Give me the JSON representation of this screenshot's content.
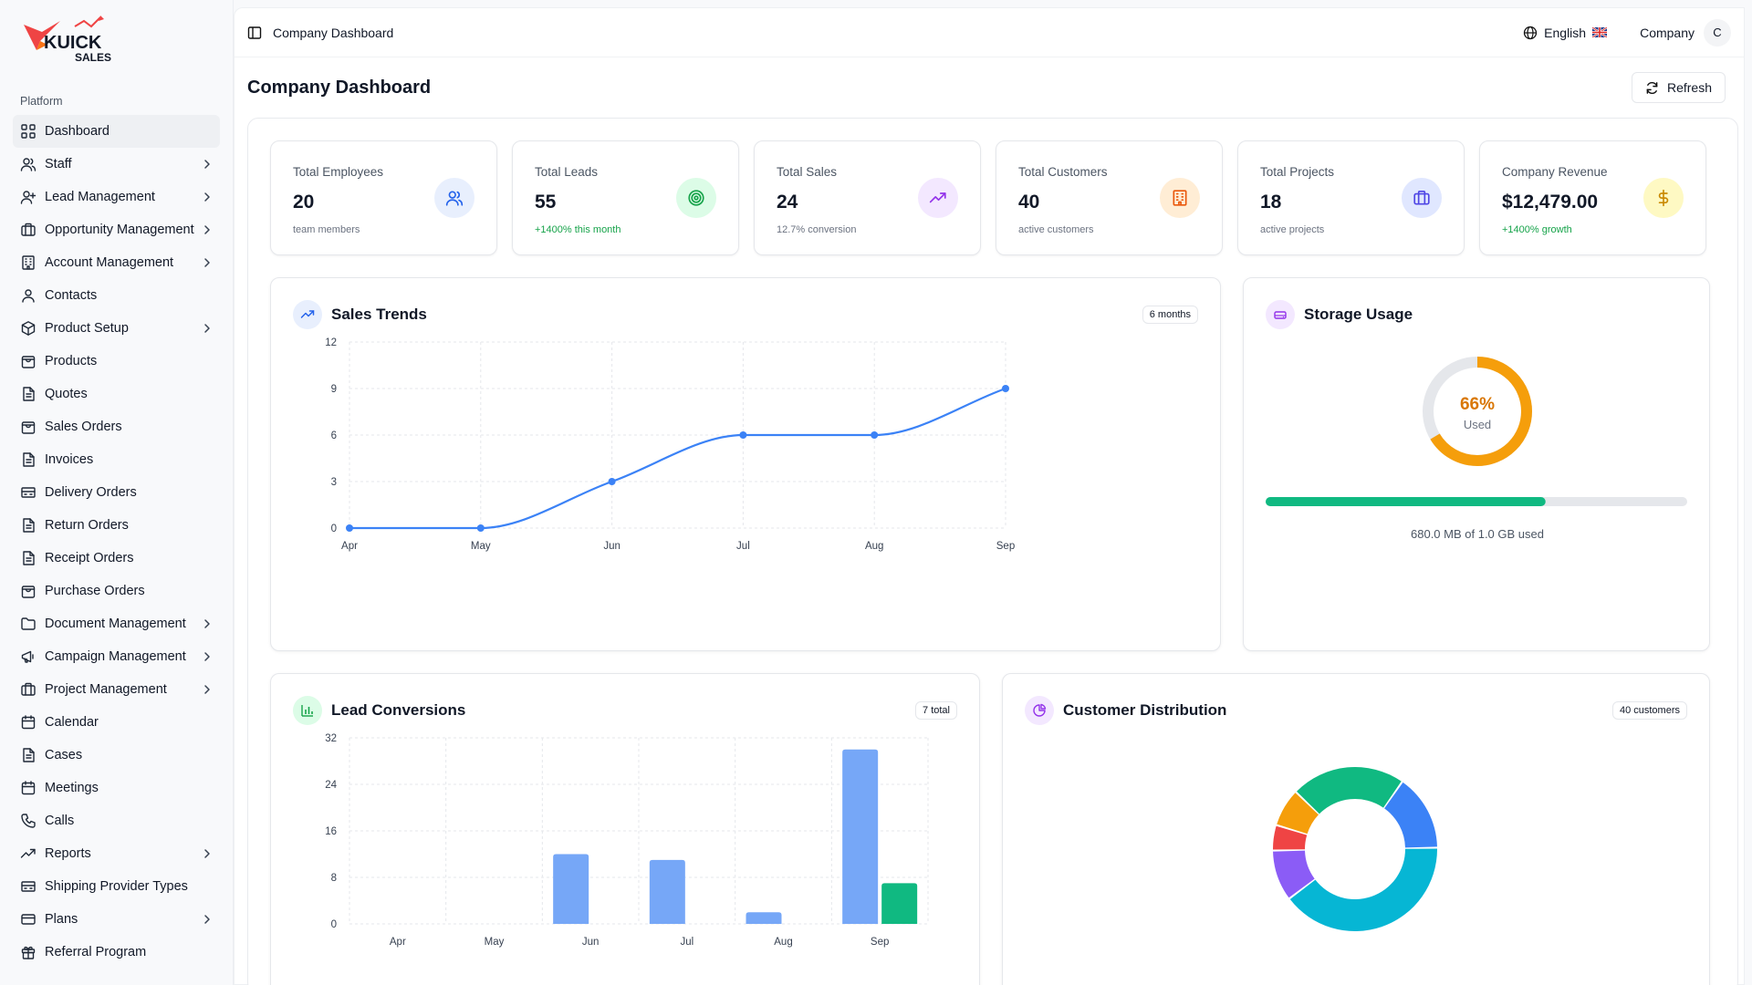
{
  "brand": {
    "name_top": "KUICK",
    "name_bottom": "SALES"
  },
  "sidebar": {
    "section_label": "Platform",
    "items": [
      {
        "label": "Dashboard",
        "icon": "grid-icon",
        "chevron": false,
        "active": true
      },
      {
        "label": "Staff",
        "icon": "users-icon",
        "chevron": true
      },
      {
        "label": "Lead Management",
        "icon": "user-plus-icon",
        "chevron": true
      },
      {
        "label": "Opportunity Management",
        "icon": "briefcase-icon",
        "chevron": true
      },
      {
        "label": "Account Management",
        "icon": "building-icon",
        "chevron": true
      },
      {
        "label": "Contacts",
        "icon": "contacts-icon",
        "chevron": false
      },
      {
        "label": "Product Setup",
        "icon": "box-icon",
        "chevron": true
      },
      {
        "label": "Products",
        "icon": "shopping-bag-icon",
        "chevron": false
      },
      {
        "label": "Quotes",
        "icon": "file-icon",
        "chevron": false
      },
      {
        "label": "Sales Orders",
        "icon": "shopping-bag-icon",
        "chevron": false
      },
      {
        "label": "Invoices",
        "icon": "file-icon",
        "chevron": false
      },
      {
        "label": "Delivery Orders",
        "icon": "truck-icon",
        "chevron": false
      },
      {
        "label": "Return Orders",
        "icon": "file-icon",
        "chevron": false
      },
      {
        "label": "Receipt Orders",
        "icon": "file-icon",
        "chevron": false
      },
      {
        "label": "Purchase Orders",
        "icon": "shopping-bag-icon",
        "chevron": false
      },
      {
        "label": "Document Management",
        "icon": "folder-icon",
        "chevron": true
      },
      {
        "label": "Campaign Management",
        "icon": "megaphone-icon",
        "chevron": true
      },
      {
        "label": "Project Management",
        "icon": "briefcase-icon",
        "chevron": true
      },
      {
        "label": "Calendar",
        "icon": "calendar-icon",
        "chevron": false
      },
      {
        "label": "Cases",
        "icon": "file-icon",
        "chevron": false
      },
      {
        "label": "Meetings",
        "icon": "calendar-icon",
        "chevron": false
      },
      {
        "label": "Calls",
        "icon": "phone-icon",
        "chevron": false
      },
      {
        "label": "Reports",
        "icon": "trending-up-icon",
        "chevron": true
      },
      {
        "label": "Shipping Provider Types",
        "icon": "truck-icon",
        "chevron": false
      },
      {
        "label": "Plans",
        "icon": "credit-card-icon",
        "chevron": true
      },
      {
        "label": "Referral Program",
        "icon": "gift-icon",
        "chevron": false
      }
    ]
  },
  "topbar": {
    "breadcrumb": "Company Dashboard",
    "language": "English",
    "company": "Company",
    "avatar_initial": "C"
  },
  "page": {
    "title": "Company Dashboard",
    "refresh_label": "Refresh"
  },
  "stats": [
    {
      "title": "Total Employees",
      "value": "20",
      "sub": "team members",
      "sub_color": "gray",
      "icon": "users-icon",
      "icon_bg": "#e8effd",
      "icon_color": "#2563eb"
    },
    {
      "title": "Total Leads",
      "value": "55",
      "sub": "+1400% this month",
      "sub_color": "green",
      "icon": "target-icon",
      "icon_bg": "#dcfce7",
      "icon_color": "#16a34a"
    },
    {
      "title": "Total Sales",
      "value": "24",
      "sub": "12.7% conversion",
      "sub_color": "gray",
      "icon": "trending-up-icon",
      "icon_bg": "#f3e8ff",
      "icon_color": "#9333ea"
    },
    {
      "title": "Total Customers",
      "value": "40",
      "sub": "active customers",
      "sub_color": "gray",
      "icon": "building-icon",
      "icon_bg": "#ffedd5",
      "icon_color": "#ea580c"
    },
    {
      "title": "Total Projects",
      "value": "18",
      "sub": "active projects",
      "sub_color": "gray",
      "icon": "briefcase-icon",
      "icon_bg": "#e0e7ff",
      "icon_color": "#4f46e5"
    },
    {
      "title": "Company Revenue",
      "value": "$12,479.00",
      "sub": "+1400% growth",
      "sub_color": "green",
      "icon": "dollar-icon",
      "icon_bg": "#fef9c3",
      "icon_color": "#ca8a04"
    }
  ],
  "sales_trends": {
    "title": "Sales Trends",
    "badge": "6 months"
  },
  "storage": {
    "title": "Storage Usage",
    "percent_label": "66%",
    "used_label": "Used",
    "percent": 0.664,
    "detail": "680.0 MB of 1.0 GB used",
    "color": "#f59e0b",
    "bar_color": "#10b981"
  },
  "lead_conversions": {
    "title": "Lead Conversions",
    "badge": "7 total"
  },
  "customer_distribution": {
    "title": "Customer Distribution",
    "badge": "40 customers"
  },
  "chart_data": [
    {
      "type": "line",
      "x": [
        "Apr",
        "May",
        "Jun",
        "Jul",
        "Aug",
        "Sep"
      ],
      "series": [
        {
          "values": [
            0,
            0,
            3,
            6,
            6,
            9
          ],
          "color": "#3b82f6"
        }
      ],
      "ylim": [
        0,
        12
      ],
      "yticks": [
        0,
        3,
        6,
        9,
        12
      ],
      "grid": true
    },
    {
      "type": "bar",
      "categories": [
        "Apr",
        "May",
        "Jun",
        "Jul",
        "Aug",
        "Sep"
      ],
      "series": [
        {
          "values": [
            0,
            0,
            12,
            11,
            2,
            30
          ],
          "color": "#76a7f7"
        },
        {
          "values": [
            0,
            0,
            0,
            0,
            0,
            7
          ],
          "color": "#10b981"
        }
      ],
      "ylim": [
        0,
        32
      ],
      "yticks": [
        0,
        8,
        16,
        24,
        32
      ],
      "grid": true
    },
    {
      "type": "pie",
      "donut": true,
      "slices": [
        {
          "value": 6,
          "color": "#3b82f6"
        },
        {
          "value": 16,
          "color": "#06b6d4"
        },
        {
          "value": 4,
          "color": "#8b5cf6"
        },
        {
          "value": 2,
          "color": "#ef4444"
        },
        {
          "value": 3,
          "color": "#f59e0b"
        },
        {
          "value": 9,
          "color": "#10b981"
        }
      ]
    }
  ]
}
